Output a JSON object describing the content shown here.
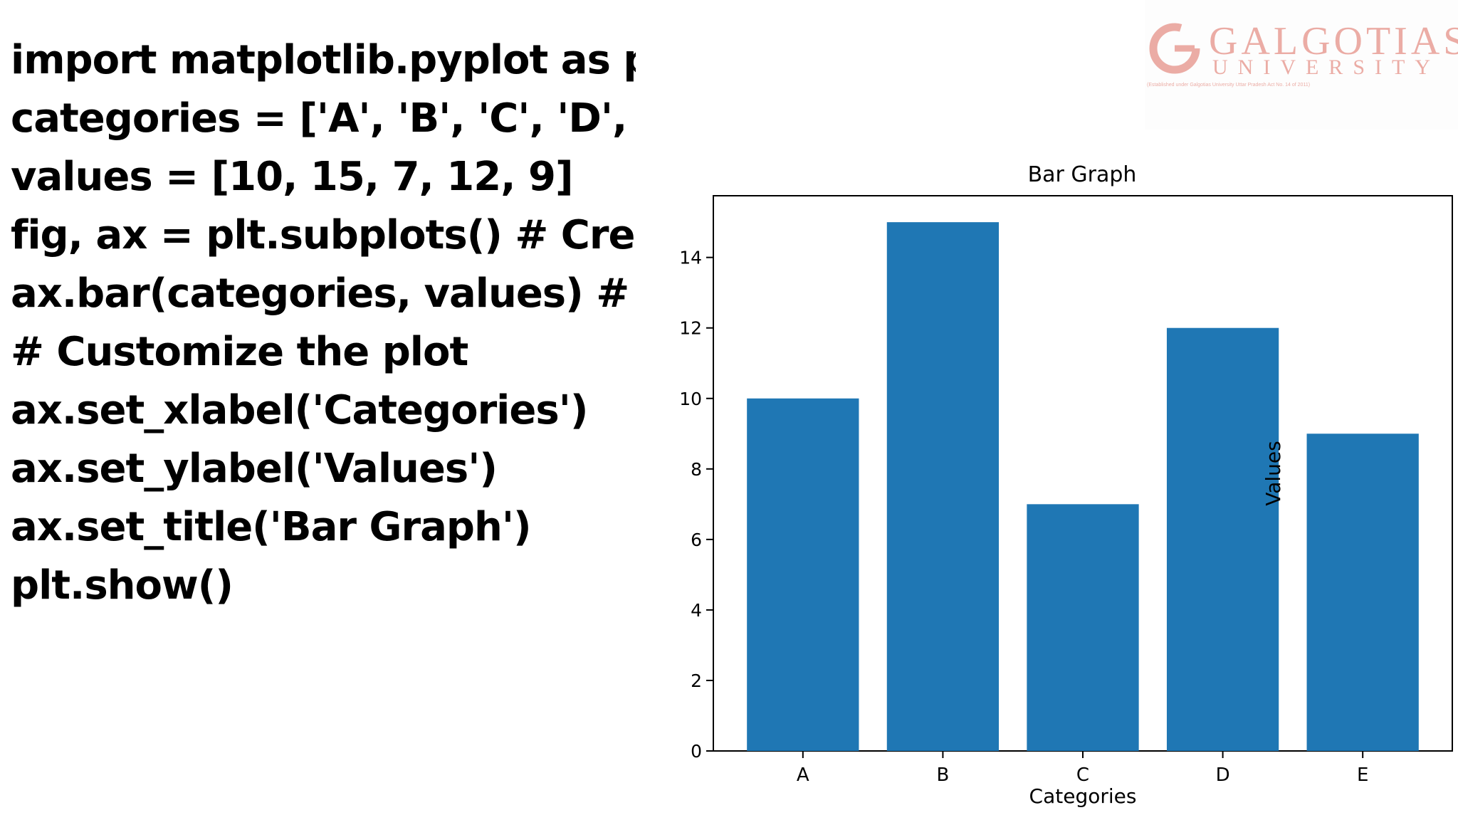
{
  "slide": {
    "code_lines": [
      "import matplotlib.pyplot as plt",
      "categories = ['A', 'B', 'C', 'D', 'E']",
      "values = [10, 15, 7, 12, 9]",
      "fig, ax = plt.subplots() # Create",
      "ax.bar(categories, values) # Plc",
      "# Customize the plot",
      "ax.set_xlabel('Categories')",
      "ax.set_ylabel('Values')",
      "ax.set_title('Bar Graph')",
      "plt.show()"
    ]
  },
  "logo": {
    "name": "GALGOTIAS",
    "subtitle": "UNIVERSITY",
    "tagline": "(Established under Galgotias University Uttar Pradesh Act No. 14 of 2011)",
    "color": "#c0392b"
  },
  "chart_data": {
    "type": "bar",
    "title": "Bar Graph",
    "xlabel": "Categories",
    "ylabel": "Values",
    "categories": [
      "A",
      "B",
      "C",
      "D",
      "E"
    ],
    "values": [
      10,
      15,
      7,
      12,
      9
    ],
    "ylim": [
      0,
      15.75
    ],
    "yticks": [
      0,
      2,
      4,
      6,
      8,
      10,
      12,
      14
    ],
    "grid": false,
    "bar_color": "#1f77b4"
  }
}
